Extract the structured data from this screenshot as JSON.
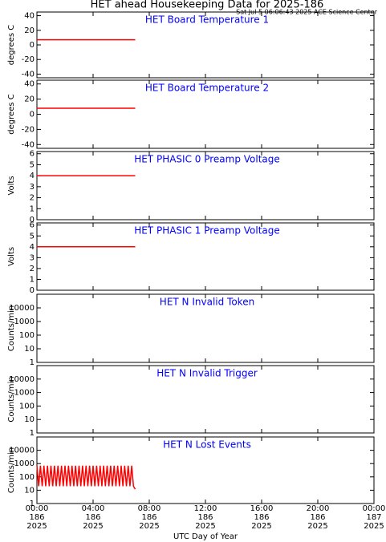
{
  "header": {
    "title": "HET ahead Housekeeping Data for 2025-186",
    "subtitle": "Sat Jul  5 06:06:43 2025 ACE Science Center"
  },
  "x_axis": {
    "label": "UTC Day of Year",
    "xlim": [
      0,
      24
    ],
    "xticks": [
      {
        "value": 0,
        "label": "00:00"
      },
      {
        "value": 4,
        "label": "04:00"
      },
      {
        "value": 8,
        "label": "08:00"
      },
      {
        "value": 12,
        "label": "12:00"
      },
      {
        "value": 16,
        "label": "16:00"
      },
      {
        "value": 20,
        "label": "20:00"
      },
      {
        "value": 24,
        "label": "00:00"
      }
    ],
    "xtick_days": [
      "186",
      "186",
      "186",
      "186",
      "186",
      "186",
      "187"
    ],
    "xtick_years": [
      "2025",
      "2025",
      "2025",
      "2025",
      "2025",
      "2025",
      "2025"
    ]
  },
  "chart_data": [
    {
      "type": "line",
      "title": "HET Board Temperature 1",
      "ylabel": "degrees C",
      "ylim": [
        -45,
        45
      ],
      "yticks": [
        -40,
        -20,
        0,
        20,
        40
      ],
      "log": false,
      "series": [
        {
          "color": "#ff0000",
          "x": [
            0,
            7
          ],
          "values": [
            7,
            7
          ]
        }
      ]
    },
    {
      "type": "line",
      "title": "HET Board Temperature 2",
      "ylabel": "degrees C",
      "ylim": [
        -45,
        45
      ],
      "yticks": [
        -40,
        -20,
        0,
        20,
        40
      ],
      "log": false,
      "series": [
        {
          "color": "#ff0000",
          "x": [
            0,
            7
          ],
          "values": [
            8,
            8
          ]
        }
      ]
    },
    {
      "type": "line",
      "title": "HET PHASIC 0 Preamp Voltage",
      "ylabel": "Volts",
      "ylim": [
        0,
        6.2
      ],
      "yticks": [
        0,
        1,
        2,
        3,
        4,
        5,
        6
      ],
      "log": false,
      "series": [
        {
          "color": "#ff0000",
          "x": [
            0,
            7
          ],
          "values": [
            4,
            4
          ]
        }
      ]
    },
    {
      "type": "line",
      "title": "HET PHASIC 1 Preamp Voltage",
      "ylabel": "Volts",
      "ylim": [
        0,
        6.2
      ],
      "yticks": [
        0,
        1,
        2,
        3,
        4,
        5,
        6
      ],
      "log": false,
      "series": [
        {
          "color": "#ff0000",
          "x": [
            0,
            7
          ],
          "values": [
            4,
            4
          ]
        }
      ]
    },
    {
      "type": "line",
      "title": "HET N Invalid Token",
      "ylabel": "Counts/min",
      "ylim": [
        1,
        100000
      ],
      "yticks": [
        1,
        10,
        100,
        1000,
        10000
      ],
      "log": true,
      "series": []
    },
    {
      "type": "line",
      "title": "HET N Invalid Trigger",
      "ylabel": "Counts/min",
      "ylim": [
        1,
        100000
      ],
      "yticks": [
        1,
        10,
        100,
        1000,
        10000
      ],
      "log": true,
      "series": []
    },
    {
      "type": "line",
      "title": "HET N Lost Events",
      "ylabel": "Counts/min",
      "ylim": [
        1,
        100000
      ],
      "yticks": [
        1,
        10,
        100,
        1000,
        10000
      ],
      "log": true,
      "series": [
        {
          "color": "#ff0000",
          "x": [
            0,
            0.125,
            0.25,
            0.375,
            0.5,
            0.625,
            0.75,
            0.875,
            1,
            1.125,
            1.25,
            1.375,
            1.5,
            1.625,
            1.75,
            1.875,
            2,
            2.125,
            2.25,
            2.375,
            2.5,
            2.625,
            2.75,
            2.875,
            3,
            3.125,
            3.25,
            3.375,
            3.5,
            3.625,
            3.75,
            3.875,
            4,
            4.125,
            4.25,
            4.375,
            4.5,
            4.625,
            4.75,
            4.875,
            5,
            5.125,
            5.25,
            5.375,
            5.5,
            5.625,
            5.75,
            5.875,
            6,
            6.125,
            6.25,
            6.375,
            6.5,
            6.625,
            6.75,
            6.875,
            7
          ],
          "values": [
            700,
            20,
            700,
            20,
            700,
            20,
            700,
            20,
            700,
            20,
            700,
            20,
            700,
            20,
            700,
            20,
            700,
            20,
            700,
            20,
            700,
            20,
            700,
            20,
            700,
            20,
            700,
            20,
            700,
            20,
            700,
            20,
            700,
            20,
            700,
            20,
            700,
            20,
            700,
            20,
            700,
            20,
            700,
            20,
            700,
            20,
            700,
            20,
            700,
            20,
            700,
            20,
            700,
            20,
            700,
            20,
            12
          ]
        }
      ]
    }
  ]
}
